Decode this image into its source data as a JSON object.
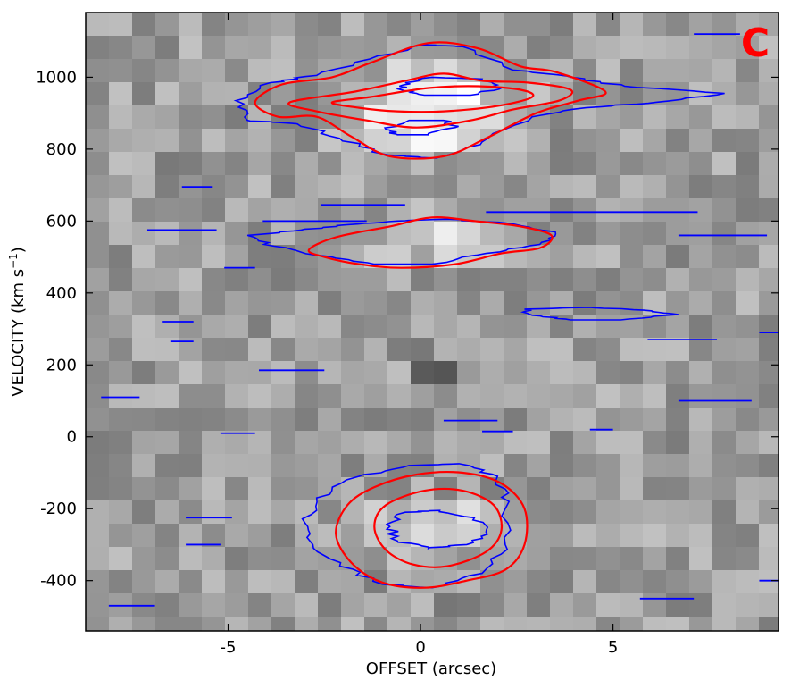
{
  "chart_data": {
    "type": "heatmap",
    "title": "",
    "panel_label": "C",
    "xlabel": "OFFSET (arcsec)",
    "ylabel_main": "VELOCITY (km s",
    "ylabel_sup": "−1",
    "ylabel_close": ")",
    "xlim": [
      -8.7,
      9.3
    ],
    "ylim": [
      -540,
      1180
    ],
    "x_ticks": [
      {
        "value": -5,
        "label": "-5"
      },
      {
        "value": 0,
        "label": "0"
      },
      {
        "value": 5,
        "label": "5"
      }
    ],
    "y_ticks": [
      {
        "value": -400,
        "label": "-400"
      },
      {
        "value": -200,
        "label": "-200"
      },
      {
        "value": 0,
        "label": "0"
      },
      {
        "value": 200,
        "label": "200"
      },
      {
        "value": 400,
        "label": "400"
      },
      {
        "value": 600,
        "label": "600"
      },
      {
        "value": 800,
        "label": "800"
      },
      {
        "value": 1000,
        "label": "1000"
      }
    ],
    "grid": false,
    "colormap": "greyscale",
    "contour_colors": {
      "red": "#ff0000",
      "blue": "#0000ff"
    },
    "bright_regions": [
      {
        "x": 0.3,
        "y": 960,
        "peak": 1.0
      },
      {
        "x": 0.2,
        "y": 850,
        "peak": 0.9
      },
      {
        "x": 0.2,
        "y": 550,
        "peak": 0.55
      },
      {
        "x": 0.7,
        "y": -250,
        "peak": 0.75
      }
    ],
    "dark_spots": [
      {
        "x": -6.2,
        "y": 780
      },
      {
        "x": -9.0,
        "y": 520
      },
      {
        "x": 0.7,
        "y": -500
      },
      {
        "x": 0.4,
        "y": 200
      }
    ],
    "red_contours": [
      {
        "name": "upper-outer",
        "points": [
          [
            -4.3,
            930
          ],
          [
            -3.6,
            980
          ],
          [
            -2.3,
            1000
          ],
          [
            -1.3,
            1040
          ],
          [
            0.2,
            1095
          ],
          [
            1.5,
            1080
          ],
          [
            2.6,
            1030
          ],
          [
            3.5,
            1015
          ],
          [
            4.8,
            960
          ],
          [
            4.1,
            935
          ],
          [
            3.0,
            900
          ],
          [
            1.7,
            830
          ],
          [
            0.6,
            780
          ],
          [
            -0.8,
            780
          ],
          [
            -1.8,
            835
          ],
          [
            -2.7,
            890
          ],
          [
            -3.7,
            890
          ]
        ]
      },
      {
        "name": "upper-inner",
        "points": [
          [
            -3.4,
            930
          ],
          [
            -1.7,
            960
          ],
          [
            -0.4,
            990
          ],
          [
            0.6,
            1010
          ],
          [
            1.6,
            990
          ],
          [
            2.8,
            985
          ],
          [
            3.9,
            965
          ],
          [
            3.6,
            935
          ],
          [
            2.4,
            910
          ],
          [
            1.3,
            880
          ],
          [
            -0.1,
            860
          ],
          [
            -1.4,
            880
          ],
          [
            -2.7,
            905
          ]
        ]
      },
      {
        "name": "upper-core",
        "points": [
          [
            -2.3,
            930
          ],
          [
            -1.3,
            945
          ],
          [
            0.2,
            970
          ],
          [
            1.5,
            975
          ],
          [
            2.6,
            965
          ],
          [
            2.9,
            945
          ],
          [
            2.0,
            920
          ],
          [
            0.6,
            905
          ],
          [
            -0.6,
            905
          ],
          [
            -1.6,
            915
          ]
        ]
      },
      {
        "name": "middle",
        "points": [
          [
            -2.9,
            520
          ],
          [
            -2.2,
            555
          ],
          [
            -0.8,
            585
          ],
          [
            0.3,
            610
          ],
          [
            1.4,
            600
          ],
          [
            2.6,
            585
          ],
          [
            3.4,
            560
          ],
          [
            3.1,
            525
          ],
          [
            2.1,
            510
          ],
          [
            0.9,
            480
          ],
          [
            -0.5,
            470
          ],
          [
            -1.6,
            480
          ],
          [
            -2.5,
            500
          ]
        ]
      },
      {
        "name": "lower-outer",
        "points": [
          [
            -2.2,
            -270
          ],
          [
            -1.9,
            -190
          ],
          [
            -1.2,
            -140
          ],
          [
            -0.1,
            -105
          ],
          [
            1.1,
            -100
          ],
          [
            2.1,
            -130
          ],
          [
            2.7,
            -200
          ],
          [
            2.7,
            -300
          ],
          [
            2.2,
            -370
          ],
          [
            1.2,
            -400
          ],
          [
            0.1,
            -420
          ],
          [
            -1.0,
            -405
          ],
          [
            -1.8,
            -350
          ]
        ]
      },
      {
        "name": "lower-inner",
        "points": [
          [
            -1.2,
            -250
          ],
          [
            -0.9,
            -190
          ],
          [
            0.1,
            -150
          ],
          [
            1.1,
            -150
          ],
          [
            1.9,
            -190
          ],
          [
            2.1,
            -260
          ],
          [
            1.7,
            -320
          ],
          [
            0.7,
            -360
          ],
          [
            -0.2,
            -355
          ],
          [
            -0.9,
            -315
          ]
        ]
      }
    ],
    "blue_contours": [
      {
        "name": "upper-envelope",
        "points": [
          [
            -4.8,
            935
          ],
          [
            -3.9,
            985
          ],
          [
            -2.7,
            1005
          ],
          [
            -1.1,
            1060
          ],
          [
            0.1,
            1090
          ],
          [
            1.1,
            1085
          ],
          [
            2.4,
            1020
          ],
          [
            3.9,
            1000
          ],
          [
            5.3,
            975
          ],
          [
            7.9,
            955
          ],
          [
            6.1,
            930
          ],
          [
            4.3,
            915
          ],
          [
            2.9,
            890
          ],
          [
            1.6,
            820
          ],
          [
            0.4,
            775
          ],
          [
            -0.9,
            785
          ],
          [
            -2.1,
            830
          ],
          [
            -3.2,
            870
          ],
          [
            -4.5,
            880
          ]
        ]
      },
      {
        "name": "upper-peak",
        "points": [
          [
            -0.4,
            985
          ],
          [
            0.3,
            1000
          ],
          [
            1.6,
            995
          ],
          [
            2.1,
            970
          ],
          [
            1.3,
            950
          ],
          [
            0.1,
            950
          ],
          [
            -0.5,
            965
          ]
        ]
      },
      {
        "name": "upper-secondary",
        "points": [
          [
            -0.9,
            855
          ],
          [
            -0.3,
            880
          ],
          [
            0.6,
            880
          ],
          [
            0.9,
            860
          ],
          [
            0.2,
            840
          ],
          [
            -0.6,
            840
          ]
        ]
      },
      {
        "name": "middle-envelope",
        "points": [
          [
            -4.5,
            560
          ],
          [
            -3.1,
            575
          ],
          [
            -1.9,
            590
          ],
          [
            -0.6,
            600
          ],
          [
            0.7,
            605
          ],
          [
            2.2,
            595
          ],
          [
            3.5,
            570
          ],
          [
            3.1,
            535
          ],
          [
            1.7,
            510
          ],
          [
            0.3,
            480
          ],
          [
            -1.2,
            480
          ],
          [
            -2.7,
            505
          ],
          [
            -3.8,
            530
          ]
        ]
      },
      {
        "name": "lower-envelope",
        "points": [
          [
            -3.0,
            -240
          ],
          [
            -2.7,
            -170
          ],
          [
            -1.6,
            -110
          ],
          [
            -0.3,
            -80
          ],
          [
            1.0,
            -75
          ],
          [
            2.0,
            -110
          ],
          [
            2.3,
            -180
          ],
          [
            2.2,
            -300
          ],
          [
            1.6,
            -380
          ],
          [
            0.3,
            -420
          ],
          [
            -1.0,
            -410
          ],
          [
            -2.1,
            -360
          ],
          [
            -2.8,
            -300
          ]
        ]
      },
      {
        "name": "lower-inner",
        "points": [
          [
            -0.8,
            -250
          ],
          [
            -0.4,
            -210
          ],
          [
            0.5,
            -205
          ],
          [
            1.4,
            -225
          ],
          [
            1.7,
            -265
          ],
          [
            1.2,
            -300
          ],
          [
            0.2,
            -310
          ],
          [
            -0.6,
            -290
          ]
        ]
      },
      {
        "name": "right-feature",
        "points": [
          [
            2.7,
            355
          ],
          [
            4.4,
            360
          ],
          [
            5.8,
            352
          ],
          [
            6.7,
            340
          ],
          [
            5.2,
            325
          ],
          [
            3.9,
            325
          ],
          [
            2.9,
            338
          ]
        ]
      }
    ],
    "blue_streaks": [
      {
        "x1": -4.1,
        "x2": -1.4,
        "y": 600
      },
      {
        "x1": -2.6,
        "x2": -0.4,
        "y": 645
      },
      {
        "x1": 1.7,
        "x2": 7.2,
        "y": 625
      },
      {
        "x1": 6.7,
        "x2": 9.0,
        "y": 560
      },
      {
        "x1": -7.1,
        "x2": -5.3,
        "y": 575
      },
      {
        "x1": -5.1,
        "x2": -4.3,
        "y": 470
      },
      {
        "x1": -6.7,
        "x2": -5.9,
        "y": 320
      },
      {
        "x1": -6.5,
        "x2": -5.9,
        "y": 265
      },
      {
        "x1": -4.2,
        "x2": -2.5,
        "y": 185
      },
      {
        "x1": -8.3,
        "x2": -7.3,
        "y": 110
      },
      {
        "x1": -5.2,
        "x2": -4.3,
        "y": 10
      },
      {
        "x1": 5.9,
        "x2": 7.7,
        "y": 270
      },
      {
        "x1": 6.7,
        "x2": 8.6,
        "y": 100
      },
      {
        "x1": 8.8,
        "x2": 9.3,
        "y": 290
      },
      {
        "x1": -8.1,
        "x2": -6.9,
        "y": -470
      },
      {
        "x1": -6.1,
        "x2": -5.2,
        "y": -300
      },
      {
        "x1": -6.1,
        "x2": -4.9,
        "y": -225
      },
      {
        "x1": 5.7,
        "x2": 7.1,
        "y": -450
      },
      {
        "x1": 8.8,
        "x2": 9.3,
        "y": -400
      },
      {
        "x1": 0.6,
        "x2": 2.0,
        "y": 45
      },
      {
        "x1": 1.6,
        "x2": 2.4,
        "y": 15
      },
      {
        "x1": 4.4,
        "x2": 5.0,
        "y": 20
      },
      {
        "x1": 7.1,
        "x2": 8.3,
        "y": 1120
      },
      {
        "x1": -6.2,
        "x2": -5.4,
        "y": 695
      }
    ]
  }
}
